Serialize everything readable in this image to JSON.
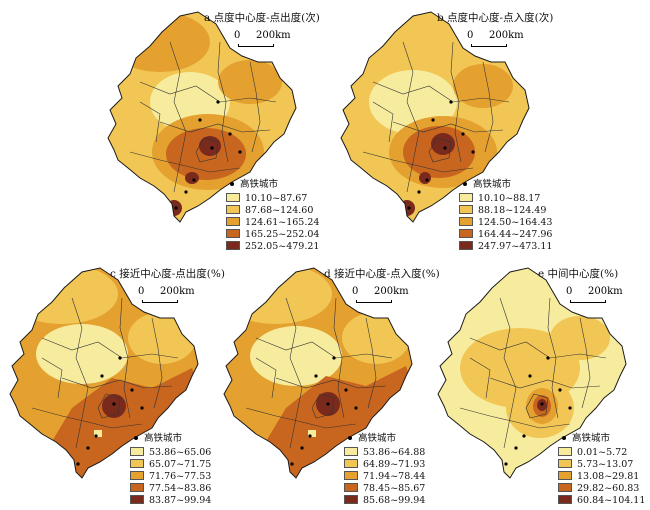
{
  "colors": {
    "class1": "#f7ec9e",
    "class2": "#f1c654",
    "class3": "#e4a12f",
    "class4": "#c8651f",
    "class5": "#7a2a1c",
    "boundary": "#333333",
    "outline": "#1a1a1a"
  },
  "scale": {
    "zero": "0",
    "distance": "200km"
  },
  "city_label": "高铁城市",
  "panels": [
    {
      "id": "a",
      "title": "a 点度中心度-点出度(次)",
      "legend": [
        "10.10~87.67",
        "87.68~124.60",
        "124.61~165.24",
        "165.25~252.04",
        "252.05~479.21"
      ]
    },
    {
      "id": "b",
      "title": "b 点度中心度-点入度(次)",
      "legend": [
        "10.10~88.17",
        "88.18~124.49",
        "124.50~164.43",
        "164.44~247.96",
        "247.97~473.11"
      ]
    },
    {
      "id": "c",
      "title": "c 接近中心度-点出度(%)",
      "legend": [
        "53.86~65.06",
        "65.07~71.75",
        "71.76~77.53",
        "77.54~83.86",
        "83.87~99.94"
      ]
    },
    {
      "id": "d",
      "title": "d 接近中心度-点入度(%)",
      "legend": [
        "53.86~64.88",
        "64.89~71.93",
        "71.94~78.44",
        "78.45~85.67",
        "85.68~99.94"
      ]
    },
    {
      "id": "e",
      "title": "e 中间中心度(%)",
      "legend": [
        "0.01~5.72",
        "5.73~13.07",
        "13.08~29.81",
        "29.82~60.83",
        "60.84~104.11"
      ]
    }
  ]
}
